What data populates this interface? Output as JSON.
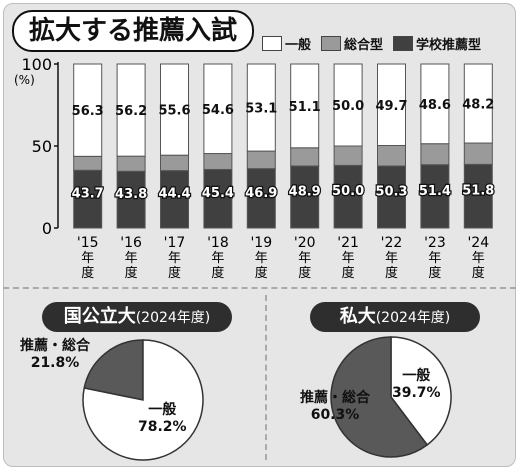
{
  "header": {
    "title": "拡大する推薦入試"
  },
  "legend": [
    {
      "label": "一般",
      "color": "#ffffff"
    },
    {
      "label": "総合型",
      "color": "#9a9a9a"
    },
    {
      "label": "学校推薦型",
      "color": "#404040"
    }
  ],
  "pies": {
    "public": {
      "title": "国公立大",
      "subtitle": "(2024年度)"
    },
    "private": {
      "title": "私大",
      "subtitle": "(2024年度)"
    }
  },
  "chart_data": [
    {
      "type": "bar",
      "stacked": true,
      "categories": [
        "'15",
        "'16",
        "'17",
        "'18",
        "'19",
        "'20",
        "'21",
        "'22",
        "'23",
        "'24"
      ],
      "category_suffix": [
        "年",
        "度"
      ],
      "ylim": [
        0,
        100
      ],
      "yticks": [
        0,
        50,
        100
      ],
      "yunit": "(%)",
      "series": [
        {
          "name": "学校推薦型",
          "values": [
            35.2,
            34.6,
            35.0,
            35.7,
            36.2,
            37.8,
            38.2,
            37.8,
            38.6,
            38.8
          ],
          "color": "#404040"
        },
        {
          "name": "総合型",
          "values": [
            8.5,
            9.2,
            9.4,
            9.7,
            10.7,
            11.1,
            11.8,
            12.5,
            12.8,
            13.0
          ],
          "color": "#9a9a9a"
        },
        {
          "name": "一般",
          "values": [
            56.3,
            56.2,
            55.6,
            54.6,
            53.1,
            51.1,
            50.0,
            49.7,
            48.6,
            48.2
          ],
          "color": "#ffffff"
        }
      ],
      "data_labels_top": [
        "56.3",
        "56.2",
        "55.6",
        "54.6",
        "53.1",
        "51.1",
        "50.0",
        "49.7",
        "48.6",
        "48.2"
      ],
      "data_labels_bottom": [
        "43.7",
        "43.8",
        "44.4",
        "45.4",
        "46.9",
        "48.9",
        "50.0",
        "50.3",
        "51.4",
        "51.8"
      ]
    },
    {
      "type": "pie",
      "title": "国公立大",
      "subtitle": "(2024年度)",
      "slices": [
        {
          "label": "推薦・総合",
          "value": 21.8,
          "display": "21.8%",
          "color": "#595959"
        },
        {
          "label": "一般",
          "value": 78.2,
          "display": "78.2%",
          "color": "#ffffff"
        }
      ]
    },
    {
      "type": "pie",
      "title": "私大",
      "subtitle": "(2024年度)",
      "slices": [
        {
          "label": "一般",
          "value": 39.7,
          "display": "39.7%",
          "color": "#ffffff"
        },
        {
          "label": "推薦・総合",
          "value": 60.3,
          "display": "60.3%",
          "color": "#595959"
        }
      ]
    }
  ]
}
